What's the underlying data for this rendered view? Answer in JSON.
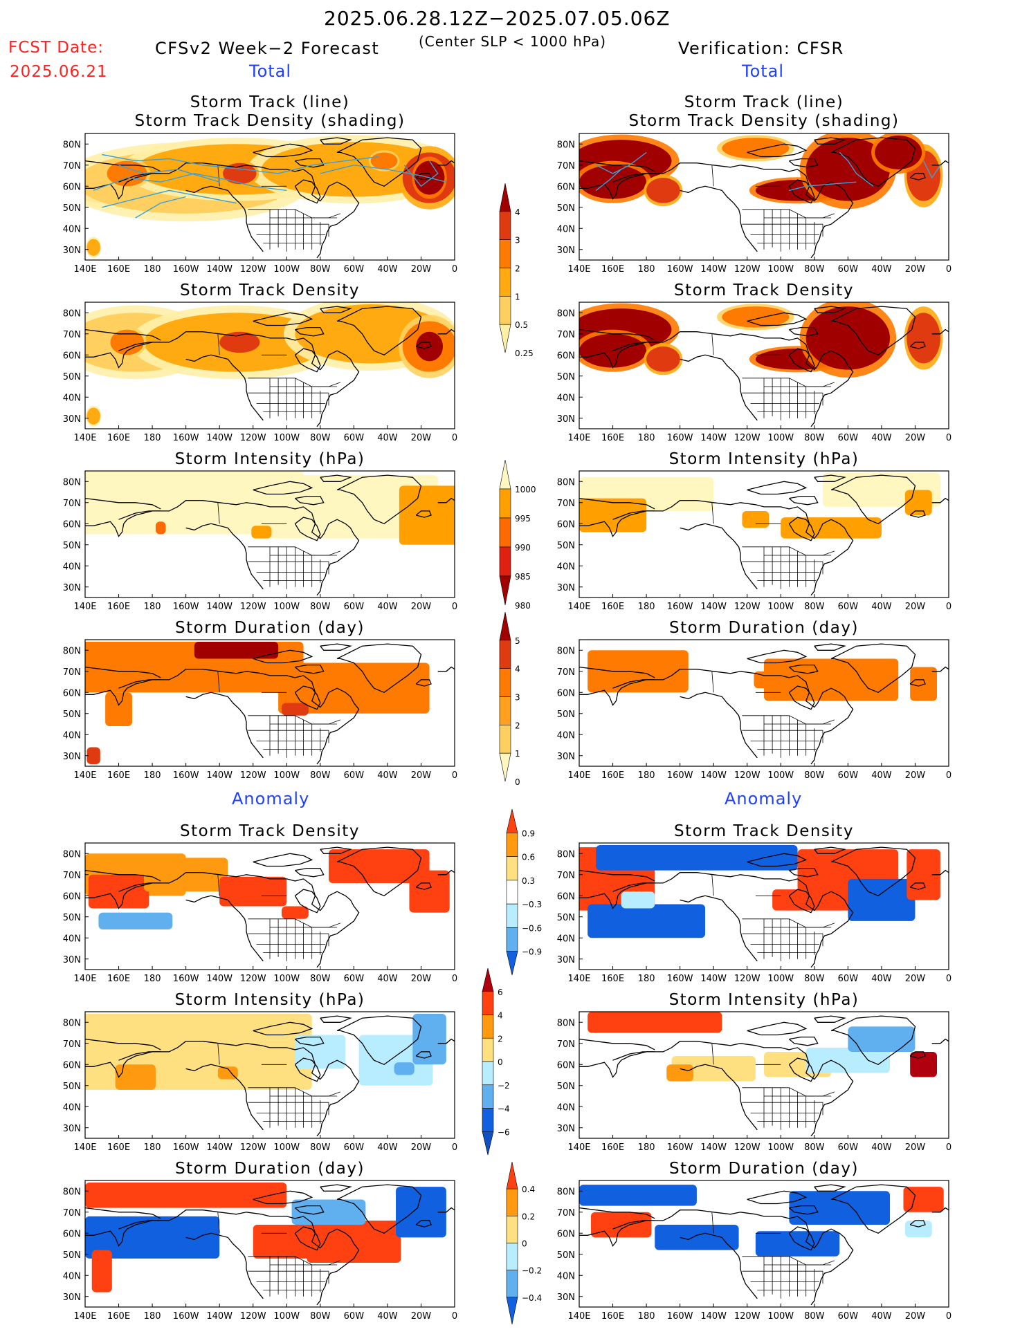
{
  "header": {
    "period": "2025.06.28.12Z−2025.07.05.06Z",
    "criterion": "(Center SLP < 1000 hPa)",
    "fcst_date_label": "FCST Date:",
    "fcst_date_value": "2025.06.21",
    "model_label": "CFSv2 Week−2 Forecast",
    "verification_label": "Verification: CFSR",
    "total_left": "Total",
    "total_right": "Total",
    "anomaly_left": "Anomaly",
    "anomaly_right": "Anomaly"
  },
  "axes": {
    "lon_labels": [
      "140E",
      "160E",
      "180",
      "160W",
      "140W",
      "120W",
      "100W",
      "80W",
      "60W",
      "40W",
      "20W",
      "0"
    ],
    "lat_labels": [
      "80N",
      "70N",
      "60N",
      "50N",
      "40N",
      "30N"
    ]
  },
  "panels": [
    {
      "id": "fcst-track",
      "title": "Storm Track (line)\nStorm Track Density (shading)",
      "scale": "density"
    },
    {
      "id": "obs-track",
      "title": "Storm Track (line)\nStorm Track Density (shading)",
      "scale": "density"
    },
    {
      "id": "fcst-density",
      "title": "Storm Track Density",
      "scale": "density"
    },
    {
      "id": "obs-density",
      "title": "Storm Track Density",
      "scale": "density"
    },
    {
      "id": "fcst-intensity",
      "title": "Storm Intensity (hPa)",
      "scale": "intensity"
    },
    {
      "id": "obs-intensity",
      "title": "Storm Intensity (hPa)",
      "scale": "intensity"
    },
    {
      "id": "fcst-duration",
      "title": "Storm Duration (day)",
      "scale": "duration"
    },
    {
      "id": "obs-duration",
      "title": "Storm Duration (day)",
      "scale": "duration"
    },
    {
      "id": "fcst-density-anom",
      "title": "Storm Track Density",
      "scale": "density_anom"
    },
    {
      "id": "obs-density-anom",
      "title": "Storm Track Density",
      "scale": "density_anom"
    },
    {
      "id": "fcst-intensity-anom",
      "title": "Storm Intensity (hPa)",
      "scale": "intensity_anom"
    },
    {
      "id": "obs-intensity-anom",
      "title": "Storm Intensity (hPa)",
      "scale": "intensity_anom"
    },
    {
      "id": "fcst-duration-anom",
      "title": "Storm Duration (day)",
      "scale": "duration_anom"
    },
    {
      "id": "obs-duration-anom",
      "title": "Storm Duration (day)",
      "scale": "duration_anom"
    }
  ],
  "colorbars": {
    "density": {
      "labels": [
        "4",
        "3",
        "2",
        "1",
        "0.5",
        "0.25"
      ],
      "colors": [
        "#a00000",
        "#e03a10",
        "#ff7a00",
        "#ffaa10",
        "#ffd060",
        "#fff0a8"
      ]
    },
    "intensity": {
      "labels": [
        "1000",
        "995",
        "990",
        "985",
        "980"
      ],
      "colors": [
        "#fff6c0",
        "#ffa000",
        "#ff6a00",
        "#e02010",
        "#a00000"
      ]
    },
    "duration": {
      "labels": [
        "5",
        "4",
        "3",
        "2",
        "1",
        "0"
      ],
      "colors": [
        "#a00000",
        "#e03a10",
        "#ff7a00",
        "#ffa020",
        "#ffd060",
        "#fff6c0"
      ]
    },
    "density_anom": {
      "labels": [
        "0.9",
        "0.6",
        "0.3",
        "−0.3",
        "−0.6",
        "−0.9"
      ],
      "colors": [
        "#ff4010",
        "#ff9a10",
        "#ffe080",
        "#ffffff",
        "#b8ecff",
        "#60b0f0",
        "#1060e0"
      ]
    },
    "intensity_anom": {
      "labels": [
        "6",
        "4",
        "2",
        "0",
        "−2",
        "−4",
        "−6"
      ],
      "colors": [
        "#b00010",
        "#ff4010",
        "#ff9a10",
        "#ffe080",
        "#b8ecff",
        "#60b0f0",
        "#1060e0",
        "#1050c0"
      ]
    },
    "duration_anom": {
      "labels": [
        "0.4",
        "0.2",
        "0",
        "−0.2",
        "−0.4"
      ],
      "colors": [
        "#ff4010",
        "#ff9a10",
        "#ffe080",
        "#b8ecff",
        "#60b0f0",
        "#1060e0"
      ]
    }
  }
}
